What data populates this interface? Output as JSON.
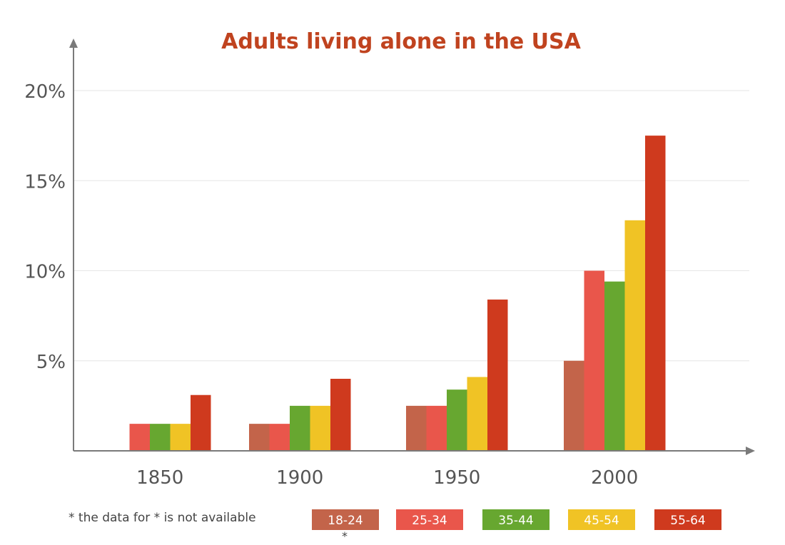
{
  "chart_data": {
    "type": "bar",
    "title": "Adults living alone in the USA",
    "xlabel": "",
    "ylabel": "",
    "categories": [
      "1850",
      "1900",
      "1950",
      "2000"
    ],
    "ylim": [
      0,
      20
    ],
    "yticks": [
      5,
      10,
      15,
      20
    ],
    "ytick_labels": [
      "5%",
      "10%",
      "15%",
      "20%"
    ],
    "grid": true,
    "legend_position": "bottom",
    "series": [
      {
        "name": "18-24",
        "color": "#c3644a",
        "values": [
          null,
          1.5,
          2.5,
          5.0
        ]
      },
      {
        "name": "25-34",
        "color": "#e9564b",
        "values": [
          1.5,
          1.5,
          2.5,
          10.0
        ]
      },
      {
        "name": "35-44",
        "color": "#67a730",
        "values": [
          1.5,
          2.5,
          3.4,
          9.4
        ]
      },
      {
        "name": "45-54",
        "color": "#f0c325",
        "values": [
          1.5,
          2.5,
          4.1,
          12.8
        ]
      },
      {
        "name": "55-64",
        "color": "#cf3a1e",
        "values": [
          3.1,
          4.0,
          8.4,
          17.5
        ]
      }
    ]
  },
  "note": "* the data for * is not available",
  "na_marker": "*",
  "colors": {
    "title": "#c0431f",
    "axis": "#7a7a7a",
    "grid": "#e6e6e6",
    "tick_text": "#555555"
  }
}
